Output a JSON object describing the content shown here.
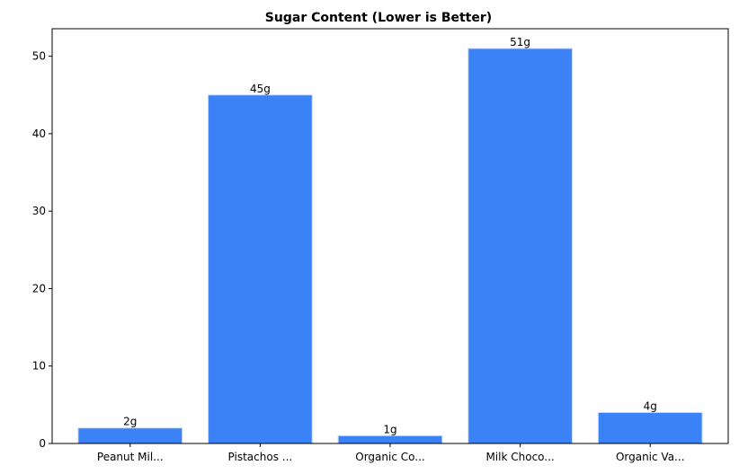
{
  "chart_data": {
    "type": "bar",
    "title": "Sugar Content (Lower is Better)",
    "xlabel": "",
    "ylabel": "",
    "categories": [
      "Peanut Mil...",
      "Pistachos ...",
      "Organic Co...",
      "Milk Choco...",
      "Organic Va..."
    ],
    "values": [
      2,
      45,
      1,
      51,
      4
    ],
    "data_labels": [
      "2g",
      "45g",
      "1g",
      "51g",
      "4g"
    ],
    "y_ticks": [
      0,
      10,
      20,
      30,
      40,
      50
    ],
    "ylim": [
      0,
      53.55
    ],
    "grid": false,
    "bar_color": "#3b82f6",
    "bar_edge_color": "#c6d8f5"
  }
}
